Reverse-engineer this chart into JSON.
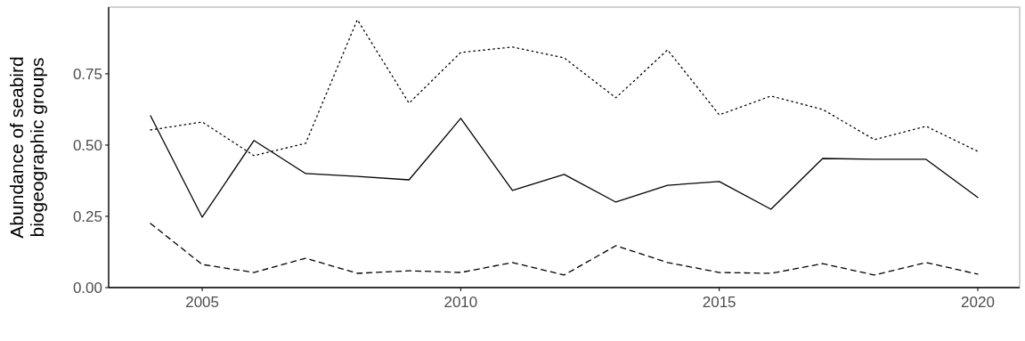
{
  "chart_data": {
    "type": "line",
    "ylabel": "Abundance of seabird\nbiogeographic groups",
    "x": [
      2004,
      2005,
      2006,
      2007,
      2008,
      2009,
      2010,
      2011,
      2012,
      2013,
      2014,
      2015,
      2016,
      2017,
      2018,
      2019,
      2020
    ],
    "series": [
      {
        "color": "#000000",
        "line_style": "solid",
        "values": [
          0.603,
          0.247,
          0.516,
          0.4,
          0.39,
          0.378,
          0.594,
          0.341,
          0.397,
          0.3,
          0.359,
          0.372,
          0.275,
          0.453,
          0.45,
          0.45,
          0.316
        ]
      },
      {
        "color": "#000000",
        "line_style": "dotted",
        "values": [
          0.553,
          0.581,
          0.463,
          0.506,
          0.94,
          0.647,
          0.825,
          0.844,
          0.806,
          0.666,
          0.834,
          0.606,
          0.672,
          0.625,
          0.519,
          0.566,
          0.478
        ]
      },
      {
        "color": "#000000",
        "line_style": "dashed",
        "values": [
          0.225,
          0.081,
          0.053,
          0.103,
          0.05,
          0.059,
          0.053,
          0.088,
          0.044,
          0.147,
          0.088,
          0.053,
          0.05,
          0.084,
          0.044,
          0.088,
          0.047
        ]
      }
    ],
    "xlim": [
      2003.19,
      2020.81
    ],
    "xticks": [
      2005,
      2010,
      2015,
      2020
    ],
    "ylim": [
      0,
      0.984
    ],
    "yticks": [
      {
        "value": 0,
        "label": "0.00"
      },
      {
        "value": 0.25,
        "label": "0.25"
      },
      {
        "value": 0.5,
        "label": "0.50"
      },
      {
        "value": 0.75,
        "label": "0.75"
      }
    ]
  }
}
